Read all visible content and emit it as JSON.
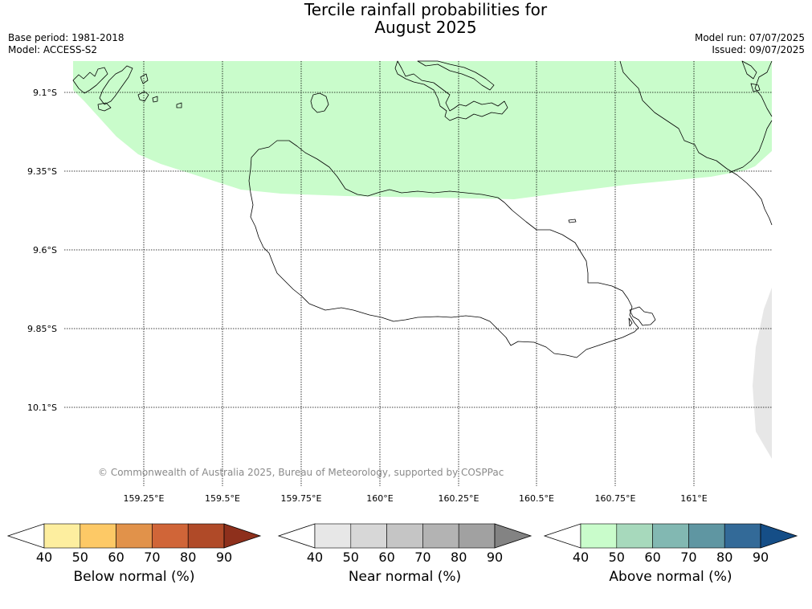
{
  "title": {
    "line1": "Tercile rainfall probabilities for",
    "line2": "August 2025"
  },
  "meta": {
    "base_period": "Base period: 1981-2018",
    "model": "Model: ACCESS-S2",
    "model_run": "Model run: 07/07/2025",
    "issued": "Issued: 09/07/2025"
  },
  "map": {
    "lat_labels": [
      "9.1°S",
      "9.35°S",
      "9.6°S",
      "9.85°S",
      "10.1°S"
    ],
    "lon_labels": [
      "159.25°E",
      "159.5°E",
      "159.75°E",
      "160°E",
      "160.25°E",
      "160.5°E",
      "160.75°E",
      "161°E"
    ],
    "copyright": "© Commonwealth of Australia 2025, Bureau of Meteorology, supported by COSPPac",
    "regions": [
      {
        "category": "Above normal",
        "probability_band": "40–50",
        "color": "#c9fccb"
      },
      {
        "category": "Near normal",
        "probability_band": "40–50",
        "color": "#e7e7e7"
      }
    ],
    "gridlines": "dotted"
  },
  "colorbars": [
    {
      "label": "Below normal (%)",
      "ticks": [
        "40",
        "50",
        "60",
        "70",
        "80",
        "90"
      ],
      "colors": [
        "#fdee9f",
        "#fdc966",
        "#e1924a",
        "#d06538",
        "#b04a28",
        "#8e301c"
      ]
    },
    {
      "label": "Near normal (%)",
      "ticks": [
        "40",
        "50",
        "60",
        "70",
        "80",
        "90"
      ],
      "colors": [
        "#e7e7e7",
        "#d7d7d7",
        "#c5c5c5",
        "#b3b3b3",
        "#a1a1a1",
        "#838383"
      ]
    },
    {
      "label": "Above normal (%)",
      "ticks": [
        "40",
        "50",
        "60",
        "70",
        "80",
        "90"
      ],
      "colors": [
        "#c9fccb",
        "#a7d9bc",
        "#82b8b2",
        "#5f96a2",
        "#336a98",
        "#154e87"
      ]
    }
  ]
}
